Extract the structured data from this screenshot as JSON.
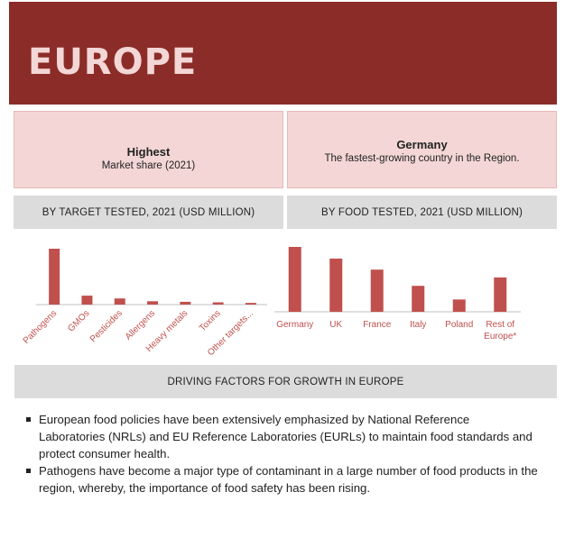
{
  "banner": {
    "title": "EUROPE",
    "color": "#8b2c28"
  },
  "cards": {
    "left": {
      "heading": "Highest",
      "subtext": "Market share (2021)"
    },
    "right": {
      "heading": "Germany",
      "subtext": "The fastest-growing country in the Region."
    }
  },
  "sections": {
    "target": "BY TARGET TESTED, 2021 (USD MILLION)",
    "food": "BY FOOD TESTED, 2021 (USD MILLION)",
    "drivers": "DRIVING FACTORS FOR GROWTH IN EUROPE"
  },
  "bullets": [
    "European food policies have been extensively emphasized by National Reference Laboratories (NRLs) and EU Reference Laboratories (EURLs) to maintain food standards and protect consumer health.",
    "Pathogens have become a major type of contaminant in a large number of food products in the region, whereby, the importance of food safety has been rising."
  ],
  "chart_data": [
    {
      "type": "bar",
      "categories": [
        "Pathogens",
        "GMOs",
        "Pesticides",
        "Allergens",
        "Heavy metals",
        "Toxins",
        "Other targets..."
      ],
      "values": [
        100,
        16,
        11,
        6,
        5,
        4,
        3
      ],
      "color": "#c0504d",
      "ylim": [
        0,
        100
      ]
    },
    {
      "type": "bar",
      "categories": [
        "Germany",
        "UK",
        "France",
        "Italy",
        "Poland",
        "Rest of Europe*"
      ],
      "values": [
        100,
        82,
        65,
        40,
        19,
        53
      ],
      "color": "#c0504d",
      "ylim": [
        0,
        100
      ]
    }
  ]
}
